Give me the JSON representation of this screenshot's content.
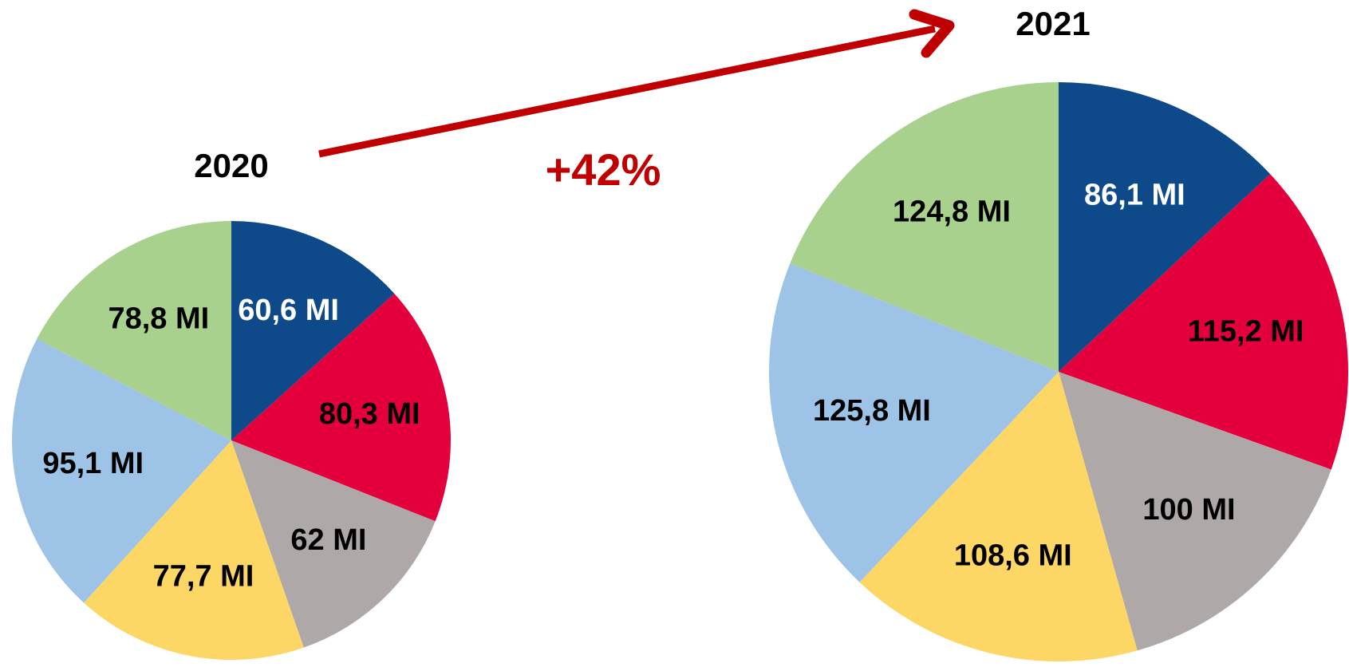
{
  "annotation": {
    "growth_label": "+42%",
    "arrow_color": "#C00000"
  },
  "chart_data": [
    {
      "type": "pie",
      "title": "2020",
      "slices": [
        {
          "label": "60,6 MI",
          "value": 60.6,
          "color": "#0E4A8A",
          "label_color": "#ffffff"
        },
        {
          "label": "80,3 MI",
          "value": 80.3,
          "color": "#E3003C",
          "label_color": "#000000"
        },
        {
          "label": "62 MI",
          "value": 62.0,
          "color": "#AEA9A8",
          "label_color": "#000000"
        },
        {
          "label": "77,7 MI",
          "value": 77.7,
          "color": "#FCD766",
          "label_color": "#000000"
        },
        {
          "label": "95,1 MI",
          "value": 95.1,
          "color": "#9DC3E6",
          "label_color": "#000000"
        },
        {
          "label": "78,8 MI",
          "value": 78.8,
          "color": "#A9D18E",
          "label_color": "#000000"
        }
      ]
    },
    {
      "type": "pie",
      "title": "2021",
      "slices": [
        {
          "label": "86,1 MI",
          "value": 86.1,
          "color": "#0E4A8A",
          "label_color": "#ffffff"
        },
        {
          "label": "115,2 MI",
          "value": 115.2,
          "color": "#E3003C",
          "label_color": "#000000"
        },
        {
          "label": "100 MI",
          "value": 100.0,
          "color": "#AEA9A8",
          "label_color": "#000000"
        },
        {
          "label": "108,6 MI",
          "value": 108.6,
          "color": "#FCD766",
          "label_color": "#000000"
        },
        {
          "label": "125,8 MI",
          "value": 125.8,
          "color": "#9DC3E6",
          "label_color": "#000000"
        },
        {
          "label": "124,8 MI",
          "value": 124.8,
          "color": "#A9D18E",
          "label_color": "#000000"
        }
      ]
    }
  ]
}
